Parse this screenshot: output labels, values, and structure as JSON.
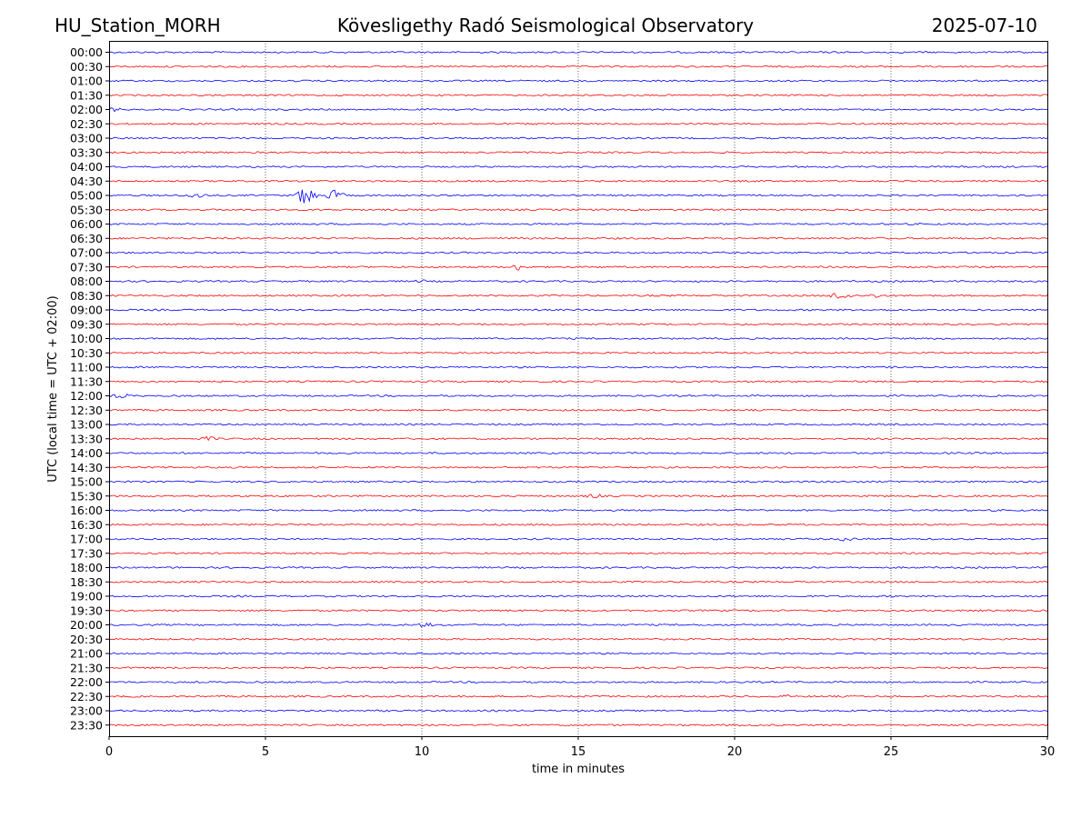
{
  "header": {
    "station": "HU_Station_MORH",
    "observatory": "Kövesligethy Radó Seismological Observatory",
    "date": "2025-07-10"
  },
  "chart_data": {
    "type": "line",
    "title": "Kövesligethy Radó Seismological Observatory",
    "xlabel": "time in minutes",
    "ylabel": "UTC (local time = UTC + 02:00)",
    "xlim": [
      0,
      30
    ],
    "x_ticks": [
      "0",
      "5",
      "10",
      "15",
      "20",
      "25",
      "30"
    ],
    "vertical_gridlines": "dotted, at every 5 minutes",
    "colors": {
      "even_hour_trace": "#0000ff",
      "half_hour_trace": "#ff0000",
      "axes": "#000000"
    },
    "rows": [
      "00:00",
      "00:30",
      "01:00",
      "01:30",
      "02:00",
      "02:30",
      "03:00",
      "03:30",
      "04:00",
      "04:30",
      "05:00",
      "05:30",
      "06:00",
      "06:30",
      "07:00",
      "07:30",
      "08:00",
      "08:30",
      "09:00",
      "09:30",
      "10:00",
      "10:30",
      "11:00",
      "11:30",
      "12:00",
      "12:30",
      "13:00",
      "13:30",
      "14:00",
      "14:30",
      "15:00",
      "15:30",
      "16:00",
      "16:30",
      "17:00",
      "17:30",
      "18:00",
      "18:30",
      "19:00",
      "19:30",
      "20:00",
      "20:30",
      "21:00",
      "21:30",
      "22:00",
      "22:30",
      "23:00",
      "23:30"
    ],
    "events": [
      {
        "row": "02:00",
        "minute": 0.1,
        "amplitude": 3
      },
      {
        "row": "05:00",
        "minute": 2.8,
        "amplitude": 4
      },
      {
        "row": "05:00",
        "minute": 6.3,
        "amplitude": 11
      },
      {
        "row": "05:00",
        "minute": 7.2,
        "amplitude": 6
      },
      {
        "row": "07:30",
        "minute": 13.1,
        "amplitude": 4
      },
      {
        "row": "08:00",
        "minute": 10.0,
        "amplitude": 2
      },
      {
        "row": "08:30",
        "minute": 23.4,
        "amplitude": 6
      },
      {
        "row": "08:30",
        "minute": 24.5,
        "amplitude": 3
      },
      {
        "row": "12:00",
        "minute": 0.4,
        "amplitude": 3
      },
      {
        "row": "13:30",
        "minute": 3.2,
        "amplitude": 3
      },
      {
        "row": "15:30",
        "minute": 15.5,
        "amplitude": 3
      },
      {
        "row": "17:00",
        "minute": 23.6,
        "amplitude": 3
      },
      {
        "row": "20:00",
        "minute": 10.1,
        "amplitude": 3
      },
      {
        "row": "22:30",
        "minute": 21.7,
        "amplitude": 2
      }
    ]
  }
}
